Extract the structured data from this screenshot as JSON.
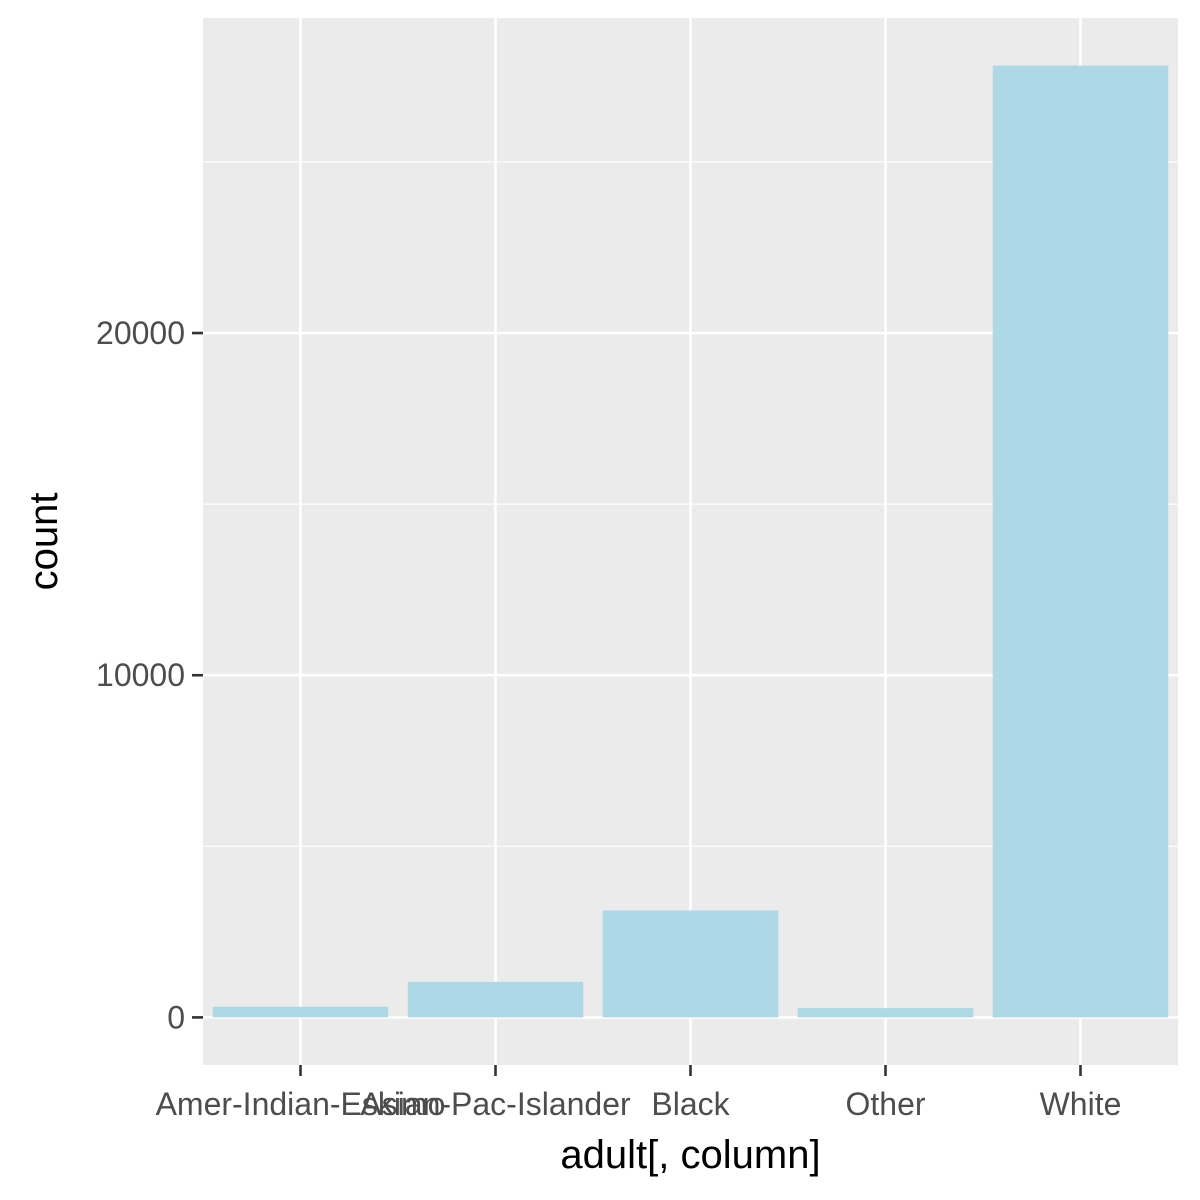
{
  "chart_data": {
    "type": "bar",
    "title": "",
    "xlabel": "adult[, column]",
    "ylabel": "count",
    "categories": [
      "Amer-Indian-Eskimo",
      "Asian-Pac-Islander",
      "Black",
      "Other",
      "White"
    ],
    "values": [
      311,
      1039,
      3124,
      271,
      27816
    ],
    "ylim": [
      -1391,
      29207
    ],
    "yticks": [
      0,
      10000,
      20000
    ],
    "ytick_labels": [
      "0",
      "10000",
      "20000"
    ],
    "grid": true,
    "legend": "none",
    "colors": {
      "bar": "#add8e6",
      "panel_background": "#ebebeb",
      "grid": "#ffffff",
      "tick": "#333333",
      "tick_label": "#4d4d4d",
      "axis_title": "#000000"
    }
  }
}
